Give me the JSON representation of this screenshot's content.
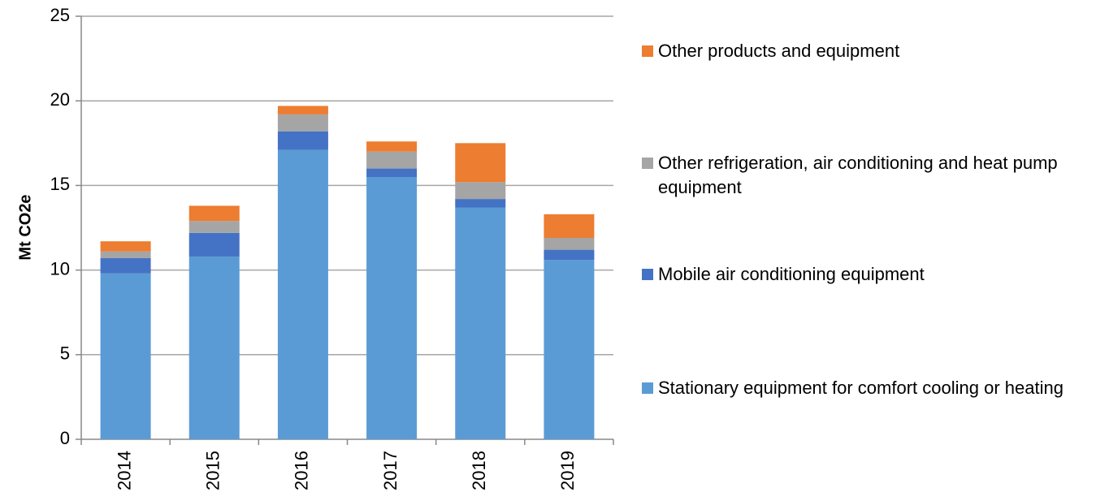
{
  "chart_data": {
    "type": "stacked_bar",
    "y_label": "Mt CO2e",
    "categories": [
      "2014",
      "2015",
      "2016",
      "2017",
      "2018",
      "2019"
    ],
    "series": [
      {
        "name": "Stationary equipment for comfort cooling or heating",
        "color": "#5b9bd5",
        "values": [
          9.8,
          10.8,
          17.1,
          15.5,
          13.7,
          10.6
        ]
      },
      {
        "name": "Mobile air conditioning equipment",
        "color": "#4472c4",
        "values": [
          0.9,
          1.4,
          1.1,
          0.5,
          0.5,
          0.6
        ]
      },
      {
        "name": "Other refrigeration, air conditioning and heat pump equipment",
        "color": "#a5a5a5",
        "values": [
          0.4,
          0.7,
          1.0,
          1.0,
          1.0,
          0.7
        ]
      },
      {
        "name": "Other products and equipment",
        "color": "#ed7d31",
        "values": [
          0.6,
          0.9,
          0.5,
          0.6,
          2.3,
          1.4
        ]
      }
    ],
    "ylim": [
      0,
      25
    ],
    "yticks": [
      0,
      5,
      10,
      15,
      20,
      25
    ],
    "grid": true
  }
}
